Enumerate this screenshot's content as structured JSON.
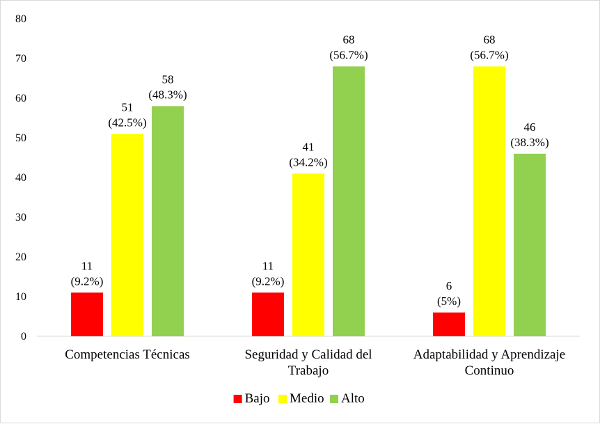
{
  "chart_data": {
    "type": "bar",
    "categories": [
      [
        "Competencias Técnicas"
      ],
      [
        "Seguridad y Calidad del",
        "Trabajo"
      ],
      [
        "Adaptabilidad y Aprendizaje",
        "Continuo"
      ]
    ],
    "series": [
      {
        "name": "Bajo",
        "color": "#ff0000",
        "values": [
          11,
          11,
          6
        ],
        "labels": [
          "(9.2%)",
          "(9.2%)",
          "(5%)"
        ]
      },
      {
        "name": "Medio",
        "color": "#ffff00",
        "values": [
          51,
          41,
          68
        ],
        "labels": [
          "(42.5%)",
          "(34.2%)",
          "(56.7%)"
        ]
      },
      {
        "name": "Alto",
        "color": "#92d050",
        "values": [
          58,
          68,
          46
        ],
        "labels": [
          "(48.3%)",
          "(56.7%)",
          "(38.3%)"
        ]
      }
    ],
    "ylim": [
      0,
      80
    ],
    "yticks": [
      0,
      10,
      20,
      30,
      40,
      50,
      60,
      70,
      80
    ],
    "grid": false,
    "legend_position": "bottom",
    "title": "",
    "xlabel": "",
    "ylabel": ""
  }
}
